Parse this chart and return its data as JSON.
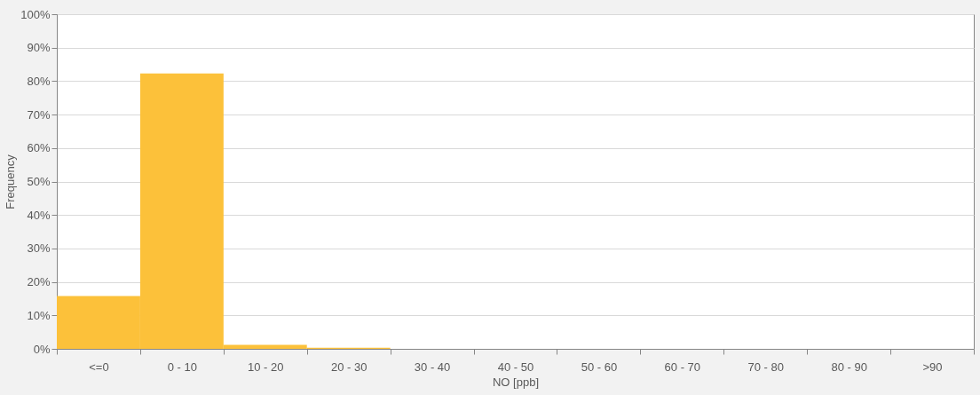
{
  "chart_data": {
    "type": "bar",
    "xlabel": "NO [ppb]",
    "ylabel": "Frequency",
    "categories": [
      "<=0",
      "0 - 10",
      "10 - 20",
      "20 - 30",
      "30 - 40",
      "40 - 50",
      "50 - 60",
      "60 - 70",
      "70 - 80",
      "80 - 90",
      ">90"
    ],
    "values": [
      15.8,
      82.3,
      1.2,
      0.3,
      0,
      0,
      0,
      0,
      0,
      0,
      0
    ],
    "color": "#fcc13a",
    "ylim": [
      0,
      100
    ],
    "yticks": [
      {
        "value": 0,
        "label": "0%"
      },
      {
        "value": 10,
        "label": "10%"
      },
      {
        "value": 20,
        "label": "20%"
      },
      {
        "value": 30,
        "label": "30%"
      },
      {
        "value": 40,
        "label": "40%"
      },
      {
        "value": 50,
        "label": "50%"
      },
      {
        "value": 60,
        "label": "60%"
      },
      {
        "value": 70,
        "label": "70%"
      },
      {
        "value": 80,
        "label": "80%"
      },
      {
        "value": 90,
        "label": "90%"
      },
      {
        "value": 100,
        "label": "100%"
      }
    ],
    "grid": "y"
  }
}
